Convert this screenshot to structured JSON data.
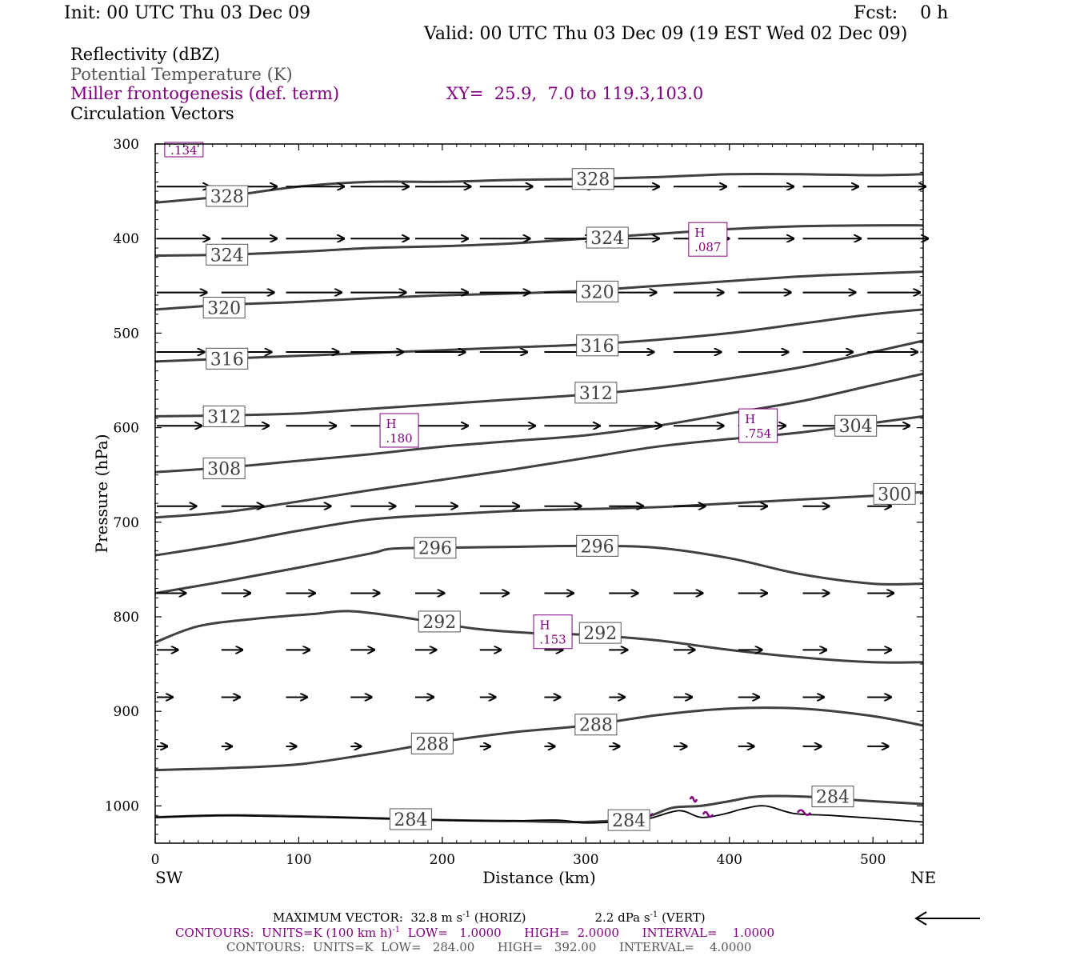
{
  "header": {
    "init": "Init: 00 UTC Thu 03 Dec 09",
    "fcst": "Fcst:    0 h",
    "valid": "Valid: 00 UTC Thu 03 Dec 09 (19 EST Wed 02 Dec 09)"
  },
  "legend": {
    "reflectivity": "Reflectivity (dBZ)",
    "theta": "Potential Temperature (K)",
    "frontogenesis": "Miller frontogenesis (def. term)",
    "xy": "XY=  25.9,  7.0 to 119.3,103.0",
    "vectors": "Circulation Vectors"
  },
  "colors": {
    "theta": "#404040",
    "frontogenesis": "#800080",
    "vectors": "#000000"
  },
  "footer": {
    "max_vector_a": "MAXIMUM VECTOR:  32.8 m s",
    "max_vector_b": " (HORIZ)",
    "max_vector_c": "2.2 dPa s",
    "max_vector_d": " (VERT)",
    "superscript": "-1",
    "contours_purple_a": "CONTOURS:  UNITS=K (100 km h)",
    "contours_purple_b": "  LOW=   1.0000      HIGH=  2.0000      INTERVAL=    1.0000",
    "contours_gray": "CONTOURS:  UNITS=K  LOW=   284.00      HIGH=   392.00      INTERVAL=    4.0000"
  },
  "chart_data": {
    "type": "line",
    "xlabel": "Distance (km)",
    "ylabel": "Pressure (hPa)",
    "xlim": [
      0,
      535
    ],
    "ylim": [
      1040,
      300
    ],
    "x_ticks": [
      0,
      100,
      200,
      300,
      400,
      500
    ],
    "y_ticks": [
      300,
      400,
      500,
      600,
      700,
      800,
      900,
      1000
    ],
    "x_end_labels": {
      "left": "SW",
      "right": "NE"
    },
    "series": [
      {
        "name": "",
        "label": "328",
        "labels_at": [
          [
            50,
            355
          ],
          [
            305,
            337
          ]
        ],
        "points": [
          [
            0,
            362
          ],
          [
            50,
            355
          ],
          [
            100,
            345
          ],
          [
            150,
            340
          ],
          [
            200,
            340
          ],
          [
            250,
            338
          ],
          [
            300,
            337
          ],
          [
            350,
            335
          ],
          [
            400,
            332
          ],
          [
            450,
            332
          ],
          [
            500,
            333
          ],
          [
            535,
            332
          ]
        ]
      },
      {
        "name": "",
        "label": "324",
        "labels_at": [
          [
            50,
            417
          ],
          [
            315,
            399
          ]
        ],
        "points": [
          [
            0,
            418
          ],
          [
            50,
            417
          ],
          [
            100,
            414
          ],
          [
            150,
            410
          ],
          [
            200,
            408
          ],
          [
            250,
            405
          ],
          [
            300,
            400
          ],
          [
            350,
            395
          ],
          [
            400,
            390
          ],
          [
            450,
            387
          ],
          [
            500,
            386
          ],
          [
            535,
            386
          ]
        ]
      },
      {
        "name": "",
        "label": "320",
        "labels_at": [
          [
            48,
            473
          ],
          [
            308,
            456
          ]
        ],
        "points": [
          [
            0,
            475
          ],
          [
            50,
            470
          ],
          [
            100,
            467
          ],
          [
            150,
            463
          ],
          [
            200,
            460
          ],
          [
            250,
            458
          ],
          [
            300,
            455
          ],
          [
            350,
            450
          ],
          [
            400,
            445
          ],
          [
            450,
            440
          ],
          [
            500,
            437
          ],
          [
            535,
            435
          ]
        ]
      },
      {
        "name": "",
        "label": "316",
        "labels_at": [
          [
            50,
            527
          ],
          [
            308,
            513
          ]
        ],
        "points": [
          [
            0,
            530
          ],
          [
            50,
            527
          ],
          [
            100,
            524
          ],
          [
            150,
            521
          ],
          [
            200,
            518
          ],
          [
            250,
            515
          ],
          [
            300,
            512
          ],
          [
            350,
            507
          ],
          [
            400,
            500
          ],
          [
            450,
            490
          ],
          [
            500,
            480
          ],
          [
            535,
            475
          ]
        ]
      },
      {
        "name": "",
        "label": "312",
        "labels_at": [
          [
            48,
            588
          ],
          [
            307,
            563
          ]
        ],
        "points": [
          [
            0,
            588
          ],
          [
            50,
            587
          ],
          [
            100,
            585
          ],
          [
            150,
            580
          ],
          [
            200,
            575
          ],
          [
            250,
            570
          ],
          [
            300,
            565
          ],
          [
            350,
            558
          ],
          [
            400,
            548
          ],
          [
            450,
            536
          ],
          [
            500,
            520
          ],
          [
            535,
            508
          ]
        ]
      },
      {
        "name": "",
        "label": "308",
        "labels_at": [
          [
            48,
            643
          ]
        ],
        "points": [
          [
            0,
            647
          ],
          [
            50,
            642
          ],
          [
            100,
            635
          ],
          [
            150,
            628
          ],
          [
            200,
            620
          ],
          [
            250,
            614
          ],
          [
            300,
            608
          ],
          [
            350,
            598
          ],
          [
            400,
            585
          ],
          [
            450,
            572
          ],
          [
            500,
            555
          ],
          [
            535,
            543
          ]
        ]
      },
      {
        "name": "",
        "label": "304",
        "labels_at": [
          [
            488,
            598
          ]
        ],
        "points": [
          [
            0,
            695
          ],
          [
            50,
            689
          ],
          [
            100,
            678
          ],
          [
            150,
            666
          ],
          [
            200,
            655
          ],
          [
            250,
            644
          ],
          [
            300,
            632
          ],
          [
            350,
            620
          ],
          [
            400,
            612
          ],
          [
            450,
            605
          ],
          [
            500,
            595
          ],
          [
            535,
            588
          ]
        ]
      },
      {
        "name": "",
        "label": "300",
        "labels_at": [
          [
            515,
            670
          ]
        ],
        "points": [
          [
            0,
            735
          ],
          [
            50,
            723
          ],
          [
            100,
            709
          ],
          [
            150,
            697
          ],
          [
            200,
            692
          ],
          [
            250,
            688
          ],
          [
            300,
            686
          ],
          [
            350,
            684
          ],
          [
            400,
            680
          ],
          [
            450,
            676
          ],
          [
            500,
            672
          ],
          [
            535,
            668
          ]
        ]
      },
      {
        "name": "",
        "label": "296",
        "labels_at": [
          [
            195,
            727
          ],
          [
            308,
            725
          ]
        ],
        "points": [
          [
            0,
            775
          ],
          [
            50,
            762
          ],
          [
            100,
            748
          ],
          [
            150,
            733
          ],
          [
            165,
            728
          ],
          [
            200,
            727
          ],
          [
            250,
            726
          ],
          [
            300,
            725
          ],
          [
            350,
            727
          ],
          [
            400,
            738
          ],
          [
            450,
            755
          ],
          [
            500,
            765
          ],
          [
            535,
            765
          ]
        ]
      },
      {
        "name": "",
        "label": "292",
        "labels_at": [
          [
            198,
            805
          ],
          [
            310,
            817
          ]
        ],
        "points": [
          [
            0,
            827
          ],
          [
            30,
            810
          ],
          [
            70,
            802
          ],
          [
            110,
            797
          ],
          [
            135,
            794
          ],
          [
            170,
            800
          ],
          [
            220,
            812
          ],
          [
            260,
            817
          ],
          [
            300,
            819
          ],
          [
            350,
            825
          ],
          [
            400,
            835
          ],
          [
            450,
            843
          ],
          [
            500,
            848
          ],
          [
            535,
            848
          ]
        ]
      },
      {
        "name": "",
        "label": "288",
        "labels_at": [
          [
            193,
            934
          ],
          [
            307,
            914
          ]
        ],
        "points": [
          [
            0,
            962
          ],
          [
            50,
            960
          ],
          [
            100,
            956
          ],
          [
            150,
            945
          ],
          [
            200,
            932
          ],
          [
            250,
            922
          ],
          [
            300,
            915
          ],
          [
            350,
            904
          ],
          [
            400,
            897
          ],
          [
            450,
            897
          ],
          [
            500,
            905
          ],
          [
            535,
            915
          ]
        ]
      },
      {
        "name": "",
        "label": "284",
        "labels_at": [
          [
            178,
            1014
          ],
          [
            330,
            1015
          ],
          [
            472,
            990
          ]
        ],
        "points": [
          [
            0,
            1012
          ],
          [
            50,
            1010
          ],
          [
            100,
            1011
          ],
          [
            150,
            1013
          ],
          [
            200,
            1015
          ],
          [
            250,
            1016
          ],
          [
            300,
            1017
          ],
          [
            340,
            1012
          ],
          [
            360,
            1002
          ],
          [
            380,
            1000
          ],
          [
            400,
            995
          ],
          [
            420,
            990
          ],
          [
            450,
            990
          ],
          [
            480,
            993
          ],
          [
            500,
            995
          ],
          [
            535,
            998
          ]
        ]
      }
    ],
    "terrain": [
      [
        0,
        1012
      ],
      [
        40,
        1010
      ],
      [
        80,
        1011
      ],
      [
        120,
        1012
      ],
      [
        160,
        1013
      ],
      [
        200,
        1015
      ],
      [
        240,
        1016
      ],
      [
        280,
        1015
      ],
      [
        300,
        1018
      ],
      [
        330,
        1016
      ],
      [
        345,
        1013
      ],
      [
        365,
        1005
      ],
      [
        380,
        1012
      ],
      [
        395,
        1009
      ],
      [
        410,
        1003
      ],
      [
        425,
        1000
      ],
      [
        445,
        1008
      ],
      [
        470,
        1010
      ],
      [
        500,
        1013
      ],
      [
        535,
        1017
      ]
    ],
    "frontogenesis_maxima": [
      {
        "label": "H",
        "value": ".134",
        "x": 20,
        "y": 305
      },
      {
        "label": "H",
        "value": ".087",
        "x": 385,
        "y": 400
      },
      {
        "label": "H",
        "value": ".180",
        "x": 170,
        "y": 602
      },
      {
        "label": "H",
        "value": ".754",
        "x": 420,
        "y": 597
      },
      {
        "label": "H",
        "value": ".153",
        "x": 277,
        "y": 815
      }
    ],
    "vectors": {
      "reference": {
        "horiz_ms": 32.8,
        "vert_dpas": 2.2
      },
      "rows": [
        {
          "p": 345,
          "x": [
            0,
            45,
            90,
            135,
            180,
            225,
            270,
            315,
            360,
            405,
            450,
            495
          ],
          "len": [
            40,
            42,
            44,
            44,
            42,
            40,
            38,
            38,
            40,
            42,
            42,
            44
          ]
        },
        {
          "p": 400,
          "x": [
            0,
            45,
            90,
            135,
            180,
            225,
            270,
            315,
            360,
            405,
            450,
            495
          ],
          "len": [
            40,
            42,
            44,
            44,
            40,
            38,
            36,
            38,
            42,
            42,
            44,
            46
          ]
        },
        {
          "p": 457,
          "x": [
            0,
            45,
            90,
            135,
            180,
            225,
            270,
            315,
            360,
            405,
            450,
            495
          ],
          "len": [
            38,
            40,
            42,
            42,
            40,
            38,
            36,
            36,
            38,
            40,
            40,
            40
          ]
        },
        {
          "p": 520,
          "x": [
            0,
            45,
            90,
            135,
            180,
            225,
            270,
            315,
            360,
            405,
            450,
            495
          ],
          "len": [
            36,
            38,
            40,
            40,
            38,
            36,
            34,
            34,
            36,
            38,
            38,
            38
          ]
        },
        {
          "p": 598,
          "x": [
            0,
            45,
            90,
            135,
            180,
            225,
            270,
            315,
            360,
            405,
            450,
            495
          ],
          "len": [
            34,
            36,
            38,
            40,
            40,
            42,
            42,
            40,
            38,
            36,
            34,
            32
          ]
        },
        {
          "p": 683,
          "x": [
            0,
            45,
            90,
            135,
            180,
            225,
            270,
            315,
            360,
            405,
            450,
            495
          ],
          "len": [
            30,
            32,
            34,
            34,
            32,
            30,
            28,
            26,
            24,
            22,
            20,
            18
          ]
        },
        {
          "p": 775,
          "x": [
            0,
            45,
            90,
            135,
            180,
            225,
            270,
            315,
            360,
            405,
            450,
            495
          ],
          "len": [
            22,
            22,
            22,
            22,
            22,
            22,
            22,
            22,
            22,
            22,
            20,
            20
          ]
        },
        {
          "p": 835,
          "x": [
            0,
            45,
            90,
            135,
            180,
            225,
            270,
            315,
            360,
            405,
            450,
            495
          ],
          "len": [
            16,
            16,
            18,
            18,
            16,
            16,
            14,
            14,
            16,
            18,
            18,
            18
          ]
        },
        {
          "p": 885,
          "x": [
            0,
            45,
            90,
            135,
            180,
            225,
            270,
            315,
            360,
            405,
            450,
            495
          ],
          "len": [
            12,
            14,
            16,
            16,
            14,
            12,
            12,
            12,
            14,
            16,
            16,
            18
          ]
        },
        {
          "p": 937,
          "x": [
            0,
            45,
            90,
            135,
            180,
            225,
            270,
            315,
            360,
            405,
            450,
            495
          ],
          "len": [
            8,
            8,
            8,
            8,
            8,
            8,
            8,
            8,
            10,
            12,
            14,
            16
          ]
        }
      ]
    },
    "grid": false
  }
}
